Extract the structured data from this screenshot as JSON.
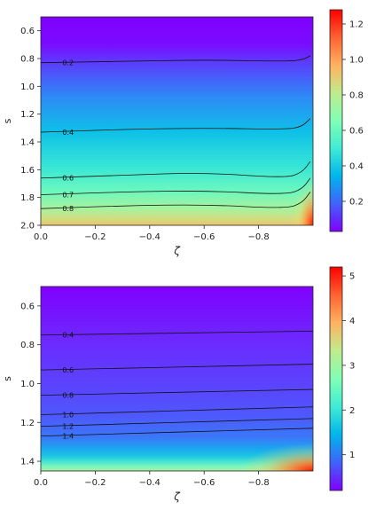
{
  "chart_data": [
    {
      "type": "heatmap",
      "title": "",
      "xlabel": "ζ",
      "ylabel": "s",
      "xlim": [
        0.0,
        -1.0
      ],
      "ylim": [
        0.5,
        2.0
      ],
      "y_inverted": true,
      "x_ticks": [
        "0.0",
        "−0.2",
        "−0.4",
        "−0.6",
        "−0.8"
      ],
      "x_tick_values": [
        0.0,
        -0.2,
        -0.4,
        -0.6,
        -0.8
      ],
      "y_ticks": [
        "0.6",
        "0.8",
        "1.0",
        "1.2",
        "1.4",
        "1.6",
        "1.8",
        "2.0"
      ],
      "y_tick_values": [
        0.6,
        0.8,
        1.0,
        1.2,
        1.4,
        1.6,
        1.8,
        2.0
      ],
      "colormap": "rainbow",
      "color_range": [
        0.03,
        1.28
      ],
      "colorbar_ticks": [
        "0.2",
        "0.4",
        "0.6",
        "0.8",
        "1.0",
        "1.2"
      ],
      "colorbar_tick_values": [
        0.2,
        0.4,
        0.6,
        0.8,
        1.0,
        1.2
      ],
      "contours": [
        {
          "level": 0.2,
          "label": "0.2",
          "s": [
            [
              0.0,
              0.83
            ],
            [
              -0.3,
              0.82
            ],
            [
              -0.6,
              0.81
            ],
            [
              -0.9,
              0.82
            ],
            [
              -0.96,
              0.81
            ],
            [
              -0.99,
              0.78
            ]
          ]
        },
        {
          "level": 0.4,
          "label": "0.4",
          "s": [
            [
              0.0,
              1.33
            ],
            [
              -0.3,
              1.31
            ],
            [
              -0.6,
              1.3
            ],
            [
              -0.9,
              1.31
            ],
            [
              -0.96,
              1.29
            ],
            [
              -0.99,
              1.23
            ]
          ]
        },
        {
          "level": 0.6,
          "label": "0.6",
          "s": [
            [
              0.0,
              1.66
            ],
            [
              -0.3,
              1.64
            ],
            [
              -0.6,
              1.62
            ],
            [
              -0.9,
              1.66
            ],
            [
              -0.96,
              1.62
            ],
            [
              -0.99,
              1.54
            ]
          ]
        },
        {
          "level": 0.7,
          "label": "0.7",
          "s": [
            [
              0.0,
              1.78
            ],
            [
              -0.3,
              1.76
            ],
            [
              -0.6,
              1.75
            ],
            [
              -0.9,
              1.78
            ],
            [
              -0.96,
              1.74
            ],
            [
              -0.99,
              1.66
            ]
          ]
        },
        {
          "level": 0.8,
          "label": "0.8",
          "s": [
            [
              0.0,
              1.88
            ],
            [
              -0.3,
              1.86
            ],
            [
              -0.6,
              1.85
            ],
            [
              -0.9,
              1.88
            ],
            [
              -0.96,
              1.84
            ],
            [
              -0.99,
              1.76
            ]
          ]
        }
      ]
    },
    {
      "type": "heatmap",
      "title": "",
      "xlabel": "ζ",
      "ylabel": "s",
      "xlim": [
        0.0,
        -1.0
      ],
      "ylim": [
        0.5,
        1.45
      ],
      "y_inverted": true,
      "x_ticks": [
        "0.0",
        "−0.2",
        "−0.4",
        "−0.6",
        "−0.8"
      ],
      "x_tick_values": [
        0.0,
        -0.2,
        -0.4,
        -0.6,
        -0.8
      ],
      "y_ticks": [
        "0.6",
        "0.8",
        "1.0",
        "1.2",
        "1.4"
      ],
      "y_tick_values": [
        0.6,
        0.8,
        1.0,
        1.2,
        1.4
      ],
      "colormap": "rainbow",
      "color_range": [
        0.2,
        5.2
      ],
      "colorbar_ticks": [
        "1",
        "2",
        "3",
        "4",
        "5"
      ],
      "colorbar_tick_values": [
        1,
        2,
        3,
        4,
        5
      ],
      "contours": [
        {
          "level": 0.4,
          "label": "0.4",
          "s": [
            [
              0.0,
              0.75
            ],
            [
              -1.0,
              0.73
            ]
          ]
        },
        {
          "level": 0.6,
          "label": "0.6",
          "s": [
            [
              0.0,
              0.93
            ],
            [
              -1.0,
              0.9
            ]
          ]
        },
        {
          "level": 0.8,
          "label": "0.8",
          "s": [
            [
              0.0,
              1.06
            ],
            [
              -1.0,
              1.03
            ]
          ]
        },
        {
          "level": 1.0,
          "label": "1.0",
          "s": [
            [
              0.0,
              1.16
            ],
            [
              -1.0,
              1.12
            ]
          ]
        },
        {
          "level": 1.2,
          "label": "1.2",
          "s": [
            [
              0.0,
              1.22
            ],
            [
              -1.0,
              1.18
            ]
          ]
        },
        {
          "level": 1.4,
          "label": "1.4",
          "s": [
            [
              0.0,
              1.27
            ],
            [
              -1.0,
              1.23
            ]
          ]
        }
      ]
    }
  ]
}
